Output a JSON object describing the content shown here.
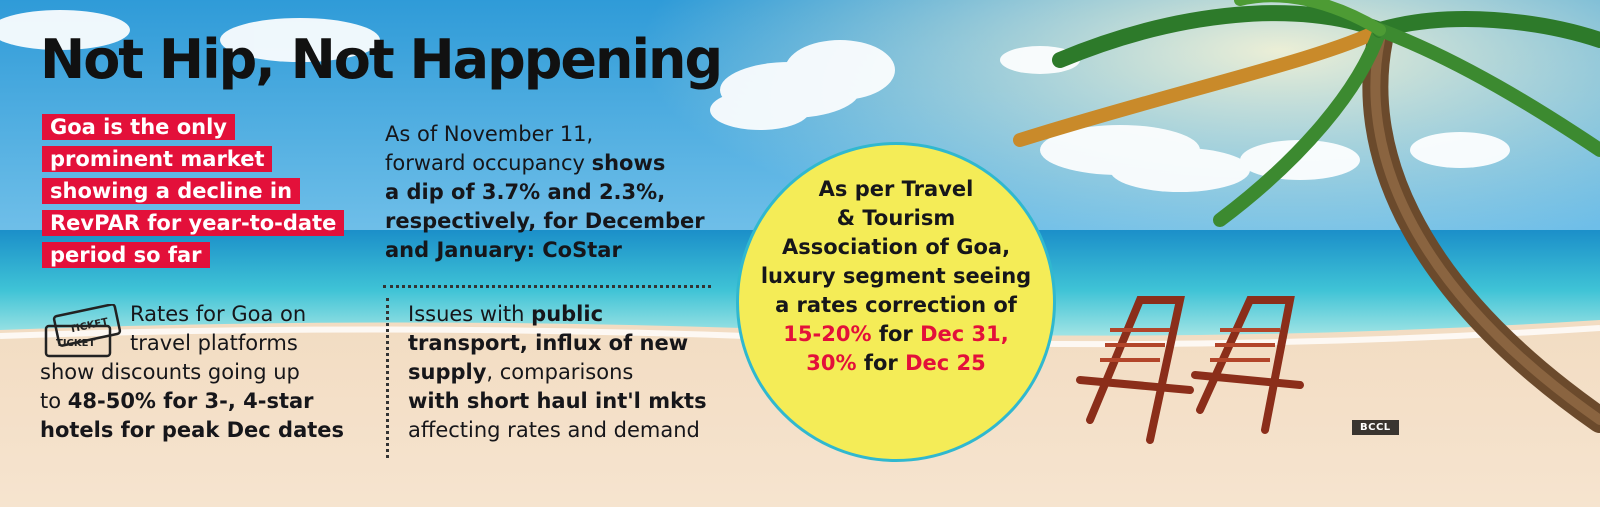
{
  "headline": "Not Hip, Not Happening",
  "red_box_lines": [
    "Goa is the only",
    "prominent market",
    "showing a decline in",
    "RevPAR for year-to-date",
    "period so far"
  ],
  "costar": {
    "l1": "As of November 11,",
    "l2a": "forward occupancy ",
    "l2b": "shows",
    "l3": "a dip of 3.7% and 2.3%,",
    "l4a": "respectively",
    "l4b": ", for December",
    "l5": "and January: CoStar"
  },
  "rates": {
    "l1": "Rates for Goa on",
    "l2": "travel platforms",
    "l3": "show discounts going up",
    "l4a": "to ",
    "l4b": "48-50% for 3-, 4-star",
    "l5": "hotels for peak Dec dates"
  },
  "issues": {
    "l1a": "Issues with ",
    "l1b": "public",
    "l2": "transport, influx of new",
    "l3a": "supply",
    "l3b": ", comparisons",
    "l4": "with short haul int'l mkts",
    "l5": "affecting rates and demand"
  },
  "circle": {
    "l1": "As per Travel",
    "l2": "& Tourism",
    "l3": "Association of Goa,",
    "l4": "luxury segment seeing",
    "l5": "a rates correction of",
    "l6a": "15-20%",
    "l6b": " for ",
    "l6c": "Dec 31,",
    "l7a": "30%",
    "l7b": " for ",
    "l7c": "Dec 25"
  },
  "ticket_icon": {
    "label_top": "TICKET",
    "label_bottom": "TICKET"
  },
  "photo_credit": "BCCL",
  "colors": {
    "accent_red": "#e3103a",
    "circle_yellow": "#f4ec57",
    "circle_border": "#30b8cf"
  }
}
